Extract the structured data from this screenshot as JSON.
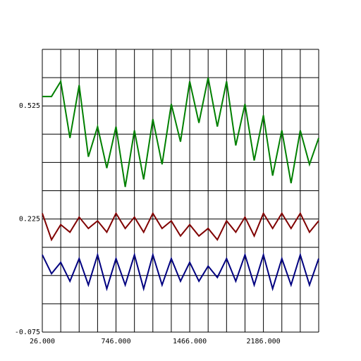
{
  "chart_data": {
    "type": "line",
    "x": [
      26,
      116,
      206,
      296,
      386,
      476,
      566,
      656,
      746,
      836,
      926,
      1016,
      1106,
      1196,
      1286,
      1376,
      1466,
      1556,
      1646,
      1736,
      1826,
      1916,
      2006,
      2096,
      2186,
      2276,
      2366,
      2456,
      2546,
      2636,
      2726
    ],
    "series": [
      {
        "color": "#008000",
        "values": [
          0.55,
          0.55,
          0.59,
          0.44,
          0.58,
          0.39,
          0.47,
          0.36,
          0.47,
          0.31,
          0.46,
          0.33,
          0.49,
          0.37,
          0.53,
          0.43,
          0.59,
          0.48,
          0.6,
          0.47,
          0.59,
          0.42,
          0.53,
          0.38,
          0.5,
          0.34,
          0.46,
          0.32,
          0.46,
          0.37,
          0.44
        ]
      },
      {
        "color": "#800000",
        "values": [
          0.24,
          0.17,
          0.21,
          0.19,
          0.23,
          0.2,
          0.22,
          0.19,
          0.24,
          0.2,
          0.23,
          0.19,
          0.24,
          0.2,
          0.22,
          0.18,
          0.21,
          0.18,
          0.2,
          0.17,
          0.22,
          0.19,
          0.23,
          0.18,
          0.24,
          0.2,
          0.24,
          0.2,
          0.24,
          0.19,
          0.22
        ]
      },
      {
        "color": "#000080",
        "values": [
          0.13,
          0.08,
          0.11,
          0.06,
          0.12,
          0.05,
          0.13,
          0.04,
          0.12,
          0.05,
          0.13,
          0.04,
          0.13,
          0.05,
          0.12,
          0.06,
          0.11,
          0.06,
          0.1,
          0.07,
          0.12,
          0.06,
          0.13,
          0.05,
          0.13,
          0.04,
          0.12,
          0.05,
          0.13,
          0.05,
          0.12
        ]
      }
    ],
    "xlim": [
      26,
      2726
    ],
    "ylim": [
      -0.075,
      0.675
    ],
    "xticks": [
      {
        "value": 26,
        "label": "26.000"
      },
      {
        "value": 746,
        "label": "746.000"
      },
      {
        "value": 1466,
        "label": "1466.000"
      },
      {
        "value": 2186,
        "label": "2186.000"
      }
    ],
    "yticks": [
      -0.075,
      0.225,
      0.525
    ],
    "xgrid": [
      26,
      206,
      386,
      566,
      746,
      926,
      1106,
      1286,
      1466,
      1646,
      1826,
      2006,
      2186,
      2366,
      2546,
      2726
    ],
    "ygrid": [
      -0.075,
      0,
      0.075,
      0.15,
      0.225,
      0.3,
      0.375,
      0.45,
      0.525,
      0.6,
      0.675
    ]
  }
}
